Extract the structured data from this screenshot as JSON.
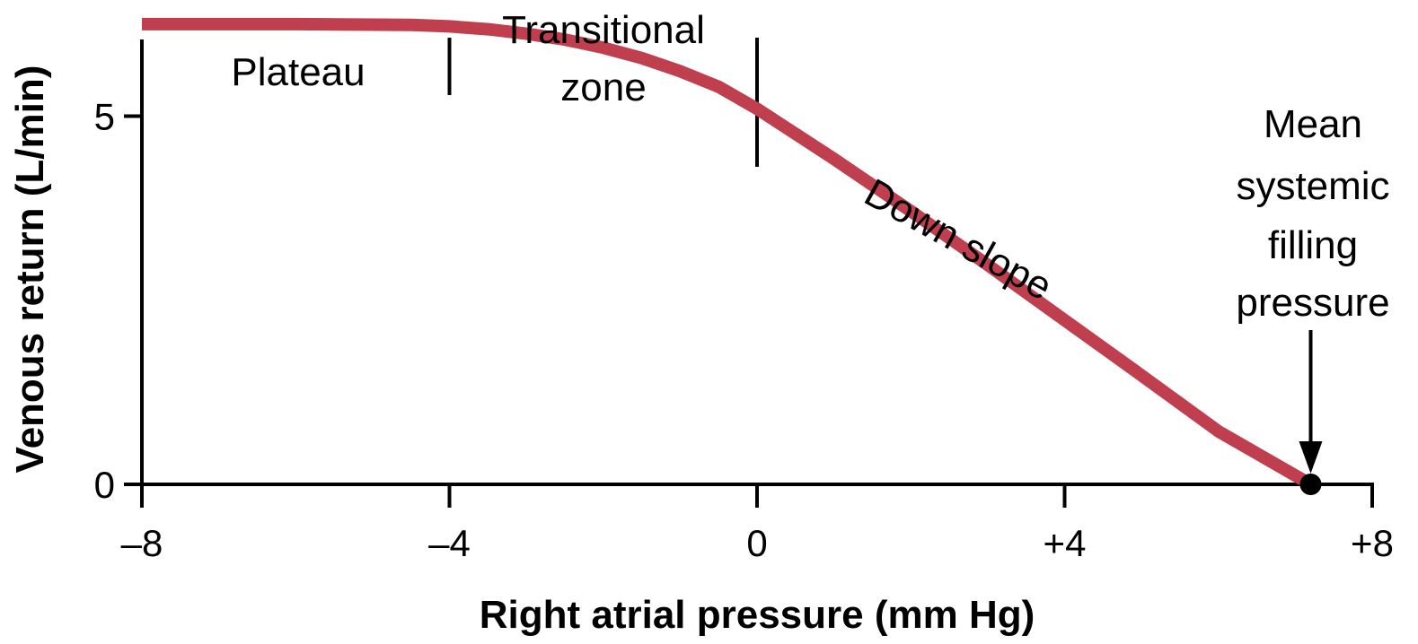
{
  "chart_data": {
    "type": "line",
    "title": "",
    "xlabel": "Right atrial pressure (mm Hg)",
    "ylabel": "Venous return (L/min)",
    "xlim": [
      -8,
      8
    ],
    "ylim": [
      0,
      6.2
    ],
    "x_ticks": [
      {
        "value": -8,
        "label": "–8"
      },
      {
        "value": -4,
        "label": "–4"
      },
      {
        "value": 0,
        "label": "0"
      },
      {
        "value": 4,
        "label": "+4"
      },
      {
        "value": 8,
        "label": "+8"
      }
    ],
    "y_ticks": [
      {
        "value": 0,
        "label": "0"
      },
      {
        "value": 5,
        "label": "5"
      }
    ],
    "grid": false,
    "line_color": "#bf3f4f",
    "series": [
      {
        "x": [
          -8,
          -6,
          -4.5,
          -4,
          -3.5,
          -3,
          -2.5,
          -2,
          -1.5,
          -1,
          -0.5,
          0,
          1,
          2,
          3,
          4,
          5,
          6,
          7.2
        ],
        "values": [
          6.25,
          6.25,
          6.24,
          6.22,
          6.18,
          6.12,
          6.04,
          5.93,
          5.79,
          5.61,
          5.4,
          5.1,
          4.42,
          3.71,
          2.98,
          2.23,
          1.48,
          0.72,
          0
        ]
      }
    ],
    "zones": [
      {
        "label": "Plateau",
        "boundary_x": -4
      },
      {
        "label": "Transitional zone",
        "boundary_x": 0
      },
      {
        "label": "Down slope"
      }
    ],
    "annotations": {
      "plateau": "Plateau",
      "transitional_line1": "Transitional",
      "transitional_line2": "zone",
      "down_slope": "Down slope",
      "msfp_line1": "Mean",
      "msfp_line2": "systemic",
      "msfp_line3": "filling",
      "msfp_line4": "pressure"
    },
    "marker_point": {
      "x": 7.2,
      "y": 0
    }
  }
}
